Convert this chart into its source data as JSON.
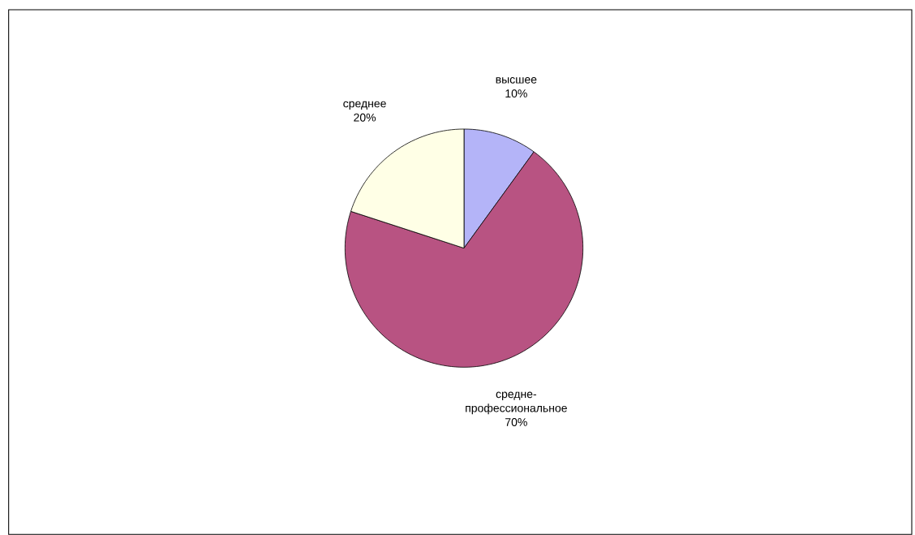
{
  "chart_data": {
    "type": "pie",
    "categories": [
      "высшее",
      "средне-профессиональное",
      "среднее"
    ],
    "values": [
      10,
      70,
      20
    ],
    "value_labels": [
      "10%",
      "70%",
      "20%"
    ],
    "colors": [
      "#b4b4f8",
      "#b85382",
      "#ffffe6"
    ]
  }
}
